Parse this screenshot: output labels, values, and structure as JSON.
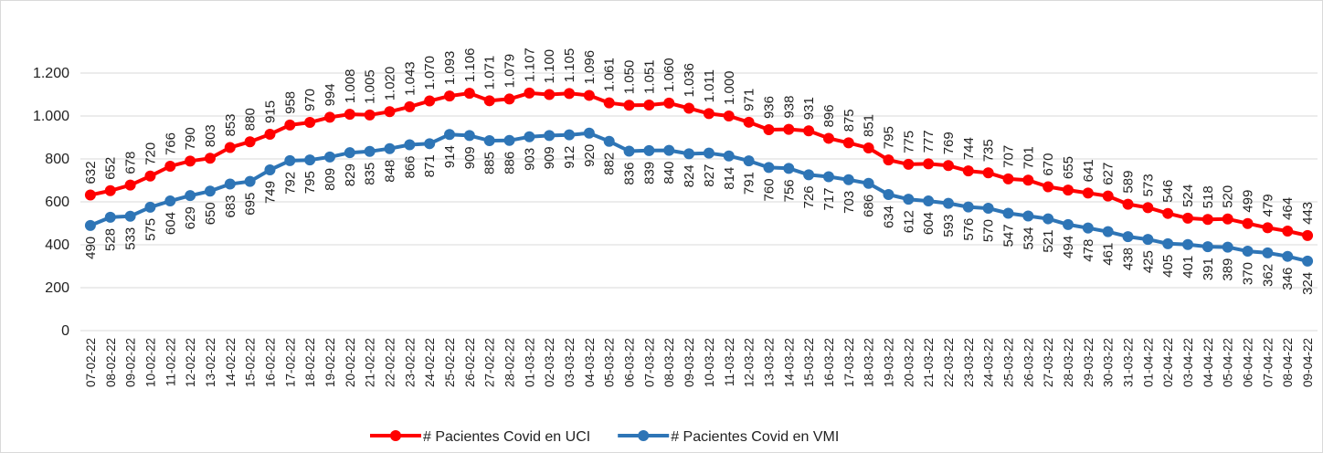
{
  "chart_data": {
    "type": "line",
    "categories": [
      "07-02-22",
      "08-02-22",
      "09-02-22",
      "10-02-22",
      "11-02-22",
      "12-02-22",
      "13-02-22",
      "14-02-22",
      "15-02-22",
      "16-02-22",
      "17-02-22",
      "18-02-22",
      "19-02-22",
      "20-02-22",
      "21-02-22",
      "22-02-22",
      "23-02-22",
      "24-02-22",
      "25-02-22",
      "26-02-22",
      "27-02-22",
      "28-02-22",
      "01-03-22",
      "02-03-22",
      "03-03-22",
      "04-03-22",
      "05-03-22",
      "06-03-22",
      "07-03-22",
      "08-03-22",
      "09-03-22",
      "10-03-22",
      "11-03-22",
      "12-03-22",
      "13-03-22",
      "14-03-22",
      "15-03-22",
      "16-03-22",
      "17-03-22",
      "18-03-22",
      "19-03-22",
      "20-03-22",
      "21-03-22",
      "22-03-22",
      "23-03-22",
      "24-03-22",
      "25-03-22",
      "26-03-22",
      "27-03-22",
      "28-03-22",
      "29-03-22",
      "30-03-22",
      "31-03-22",
      "01-04-22",
      "02-04-22",
      "03-04-22",
      "04-04-22",
      "05-04-22",
      "06-04-22",
      "07-04-22",
      "08-04-22",
      "09-04-22"
    ],
    "series": [
      {
        "name": "# Pacientes Covid en UCI",
        "color": "#ff0000",
        "values": [
          632,
          652,
          678,
          720,
          766,
          790,
          803,
          853,
          880,
          915,
          958,
          970,
          994,
          1008,
          1005,
          1020,
          1043,
          1070,
          1093,
          1106,
          1071,
          1079,
          1107,
          1100,
          1105,
          1096,
          1061,
          1050,
          1051,
          1060,
          1036,
          1011,
          1000,
          971,
          936,
          938,
          931,
          896,
          875,
          851,
          795,
          775,
          777,
          769,
          744,
          735,
          707,
          701,
          670,
          655,
          641,
          627,
          589,
          573,
          546,
          524,
          518,
          520,
          499,
          479,
          464,
          443
        ],
        "value_labels": [
          "632",
          "652",
          "678",
          "720",
          "766",
          "790",
          "803",
          "853",
          "880",
          "915",
          "958",
          "970",
          "994",
          "1.008",
          "1.005",
          "1.020",
          "1.043",
          "1.070",
          "1.093",
          "1.106",
          "1.071",
          "1.079",
          "1.107",
          "1.100",
          "1.105",
          "1.096",
          "1.061",
          "1.050",
          "1.051",
          "1.060",
          "1.036",
          "1.011",
          "1.000",
          "971",
          "936",
          "938",
          "931",
          "896",
          "875",
          "851",
          "795",
          "775",
          "777",
          "769",
          "744",
          "735",
          "707",
          "701",
          "670",
          "655",
          "641",
          "627",
          "589",
          "573",
          "546",
          "524",
          "518",
          "520",
          "499",
          "479",
          "464",
          "443"
        ]
      },
      {
        "name": "# Pacientes Covid en VMI",
        "color": "#2e75b6",
        "values": [
          490,
          528,
          533,
          575,
          604,
          629,
          650,
          683,
          695,
          749,
          792,
          795,
          809,
          829,
          835,
          848,
          866,
          871,
          914,
          909,
          885,
          886,
          903,
          909,
          912,
          920,
          882,
          836,
          839,
          840,
          824,
          827,
          814,
          791,
          760,
          756,
          726,
          717,
          703,
          686,
          634,
          612,
          604,
          593,
          576,
          570,
          547,
          534,
          521,
          494,
          478,
          461,
          438,
          425,
          405,
          401,
          391,
          389,
          370,
          362,
          346,
          324
        ]
      }
    ],
    "ylim": [
      0,
      1400
    ],
    "yticks": [
      0,
      200,
      400,
      600,
      800,
      {
        "value": 1000,
        "label": "1.000"
      },
      {
        "value": 1200,
        "label": "1.200"
      }
    ],
    "grid": true,
    "legend": "bottom"
  }
}
